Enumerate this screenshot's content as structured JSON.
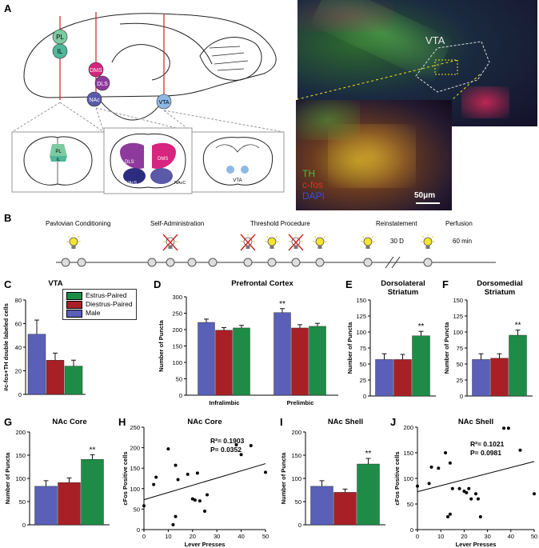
{
  "panels": {
    "A": "A",
    "B": "B",
    "C": "C",
    "D": "D",
    "E": "E",
    "F": "F",
    "G": "G",
    "H": "H",
    "I": "I",
    "J": "J"
  },
  "brain": {
    "regions": [
      "PL",
      "IL",
      "DMS",
      "DLS",
      "NAc",
      "VTA"
    ],
    "section2_labels": [
      "DLS",
      "DMS",
      "NAcS",
      "NAcC"
    ],
    "section1_labels": [
      "PL",
      "IL"
    ],
    "section3_labels": [
      "VTA"
    ],
    "colors": {
      "PL": "#7ccba2",
      "IL": "#4fb79a",
      "DMS": "#d6247f",
      "DLS": "#8e3a9c",
      "NAc": "#5a5aa8",
      "VTA": "#8db8e6"
    }
  },
  "micrograph": {
    "region_label": "VTA",
    "legend": [
      "TH",
      "c-fos",
      "DAPI"
    ],
    "legend_colors": [
      "#40c040",
      "#e03020",
      "#3050e0"
    ],
    "scale_bar": "50μm"
  },
  "timeline": {
    "stages": [
      "Pavlovian Conditioning",
      "Self-Administration",
      "Threshold Procedure",
      "Reinstatement",
      "Perfusion"
    ],
    "gap_label": "30 D",
    "perfusion_time": "60 min",
    "bulb_icon": "light-bulb-icon",
    "crossed_icon": "crossed-light-bulb-icon"
  },
  "legend": {
    "items": [
      {
        "label": "Estrus-Paired",
        "color": "#1e8c46"
      },
      {
        "label": "Diestrus-Paired",
        "color": "#a82026"
      },
      {
        "label": "Male",
        "color": "#5a5fb8"
      }
    ]
  },
  "chart_data": [
    {
      "id": "C",
      "type": "bar",
      "title": "VTA",
      "ylabel": "#c-fos+TH double labeled cells",
      "ylim": [
        0,
        80
      ],
      "yticks": [
        0,
        20,
        40,
        60,
        80
      ],
      "series": [
        {
          "name": "Male",
          "values": [
            51
          ],
          "err": [
            12
          ]
        },
        {
          "name": "Diestrus-Paired",
          "values": [
            29
          ],
          "err": [
            6
          ]
        },
        {
          "name": "Estrus-Paired",
          "values": [
            24
          ],
          "err": [
            5
          ]
        }
      ]
    },
    {
      "id": "D",
      "type": "bar",
      "title": "Prefrontal Cortex",
      "ylabel": "Number of Puncta",
      "categories": [
        "Infralimbic",
        "Prelimbic"
      ],
      "ylim": [
        0,
        300
      ],
      "yticks": [
        0,
        50,
        100,
        150,
        200,
        250,
        300
      ],
      "series": [
        {
          "name": "Male",
          "values": [
            222,
            252
          ],
          "err": [
            10,
            12
          ]
        },
        {
          "name": "Diestrus-Paired",
          "values": [
            198,
            205
          ],
          "err": [
            8,
            10
          ]
        },
        {
          "name": "Estrus-Paired",
          "values": [
            205,
            210
          ],
          "err": [
            8,
            9
          ]
        }
      ],
      "annotations": [
        {
          "text": "**",
          "category": "Prelimbic",
          "series": "Male"
        }
      ]
    },
    {
      "id": "E",
      "type": "bar",
      "title": "Dorsolateral\nStriatum",
      "ylabel": "Number of Puncta",
      "ylim": [
        0,
        150
      ],
      "yticks": [
        0,
        25,
        50,
        75,
        100,
        125,
        150
      ],
      "series": [
        {
          "name": "Male",
          "values": [
            57
          ],
          "err": [
            9
          ]
        },
        {
          "name": "Diestrus-Paired",
          "values": [
            57
          ],
          "err": [
            8
          ]
        },
        {
          "name": "Estrus-Paired",
          "values": [
            94
          ],
          "err": [
            7
          ]
        }
      ],
      "annotations": [
        {
          "text": "**",
          "series": "Estrus-Paired"
        }
      ]
    },
    {
      "id": "F",
      "type": "bar",
      "title": "Dorsomedial\nStriatum",
      "ylabel": "Number of Puncta",
      "ylim": [
        0,
        150
      ],
      "yticks": [
        0,
        25,
        50,
        75,
        100,
        125,
        150
      ],
      "series": [
        {
          "name": "Male",
          "values": [
            57
          ],
          "err": [
            9
          ]
        },
        {
          "name": "Diestrus-Paired",
          "values": [
            59
          ],
          "err": [
            7
          ]
        },
        {
          "name": "Estrus-Paired",
          "values": [
            95
          ],
          "err": [
            8
          ]
        }
      ],
      "annotations": [
        {
          "text": "**",
          "series": "Estrus-Paired"
        }
      ]
    },
    {
      "id": "G",
      "type": "bar",
      "title": "NAc Core",
      "ylabel": "Number of Puncta",
      "ylim": [
        0,
        200
      ],
      "yticks": [
        0,
        50,
        100,
        150,
        200
      ],
      "series": [
        {
          "name": "Male",
          "values": [
            83
          ],
          "err": [
            12
          ]
        },
        {
          "name": "Diestrus-Paired",
          "values": [
            91
          ],
          "err": [
            10
          ]
        },
        {
          "name": "Estrus-Paired",
          "values": [
            141
          ],
          "err": [
            10
          ]
        }
      ],
      "annotations": [
        {
          "text": "**",
          "series": "Estrus-Paired"
        }
      ]
    },
    {
      "id": "H",
      "type": "scatter",
      "title": "NAc Core",
      "xlabel": "Lever Presses",
      "ylabel": "cFos Positive cells",
      "xlim": [
        0,
        50
      ],
      "ylim": [
        0,
        250
      ],
      "xticks": [
        0,
        10,
        20,
        30,
        40,
        50
      ],
      "yticks": [
        0,
        50,
        100,
        150,
        200,
        250
      ],
      "points": [
        [
          0,
          58
        ],
        [
          4,
          110
        ],
        [
          5,
          128
        ],
        [
          10,
          197
        ],
        [
          13,
          157
        ],
        [
          14,
          122
        ],
        [
          18,
          135
        ],
        [
          12,
          12
        ],
        [
          13,
          32
        ],
        [
          20,
          75
        ],
        [
          21,
          72
        ],
        [
          23,
          70
        ],
        [
          25,
          45
        ],
        [
          26,
          85
        ],
        [
          22,
          138
        ],
        [
          38,
          207
        ],
        [
          40,
          183
        ],
        [
          44,
          205
        ],
        [
          50,
          140
        ]
      ],
      "fit": {
        "x": [
          0,
          50
        ],
        "y": [
          73,
          161
        ]
      },
      "stats": [
        "R²= 0.1903",
        "P= 0.0352"
      ]
    },
    {
      "id": "I",
      "type": "bar",
      "title": "NAc Shell",
      "ylabel": "Number of Puncta",
      "ylim": [
        0,
        200
      ],
      "yticks": [
        0,
        50,
        100,
        150,
        200
      ],
      "series": [
        {
          "name": "Male",
          "values": [
            83
          ],
          "err": [
            12
          ]
        },
        {
          "name": "Diestrus-Paired",
          "values": [
            70
          ],
          "err": [
            7
          ]
        },
        {
          "name": "Estrus-Paired",
          "values": [
            131
          ],
          "err": [
            12
          ]
        }
      ],
      "annotations": [
        {
          "text": "**",
          "series": "Estrus-Paired"
        }
      ]
    },
    {
      "id": "J",
      "type": "scatter",
      "title": "NAc Shell",
      "xlabel": "Lever Presses",
      "ylabel": "cFos Positive cells",
      "xlim": [
        0,
        50
      ],
      "ylim": [
        0,
        200
      ],
      "xticks": [
        0,
        10,
        20,
        30,
        40,
        50
      ],
      "yticks": [
        0,
        50,
        100,
        150,
        200
      ],
      "points": [
        [
          0,
          85
        ],
        [
          5,
          90
        ],
        [
          6,
          122
        ],
        [
          9,
          120
        ],
        [
          12,
          150
        ],
        [
          14,
          130
        ],
        [
          15,
          80
        ],
        [
          13,
          25
        ],
        [
          14,
          30
        ],
        [
          18,
          80
        ],
        [
          20,
          75
        ],
        [
          21,
          72
        ],
        [
          22,
          80
        ],
        [
          23,
          60
        ],
        [
          25,
          70
        ],
        [
          26,
          60
        ],
        [
          27,
          25
        ],
        [
          37,
          198
        ],
        [
          39,
          198
        ],
        [
          44,
          155
        ],
        [
          50,
          70
        ]
      ],
      "fit": {
        "x": [
          0,
          50
        ],
        "y": [
          74,
          133
        ]
      },
      "stats": [
        "R²= 0.1021",
        "P= 0.0981"
      ]
    }
  ]
}
